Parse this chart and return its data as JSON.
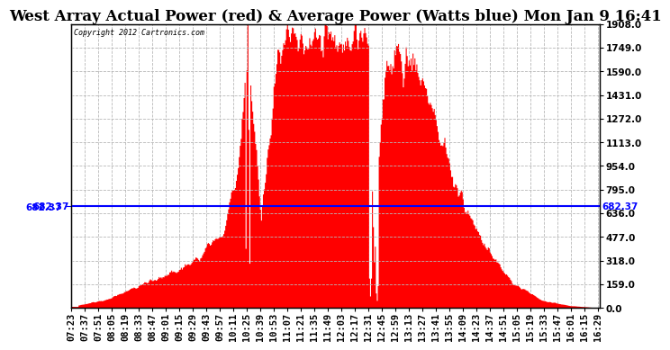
{
  "title": "West Array Actual Power (red) & Average Power (Watts blue) Mon Jan 9 16:41",
  "copyright": "Copyright 2012 Cartronics.com",
  "avg_power": 682.37,
  "y_ticks": [
    0.0,
    159.0,
    318.0,
    477.0,
    636.0,
    795.0,
    954.0,
    1113.0,
    1272.0,
    1431.0,
    1590.0,
    1749.0,
    1908.0
  ],
  "y_max": 1908.0,
  "x_tick_labels": [
    "07:23",
    "07:37",
    "07:51",
    "08:05",
    "08:19",
    "08:33",
    "08:47",
    "09:01",
    "09:15",
    "09:29",
    "09:43",
    "09:57",
    "10:11",
    "10:25",
    "10:39",
    "10:53",
    "11:07",
    "11:21",
    "11:35",
    "11:49",
    "12:03",
    "12:17",
    "12:31",
    "12:45",
    "12:59",
    "13:13",
    "13:27",
    "13:41",
    "13:55",
    "14:09",
    "14:23",
    "14:37",
    "14:51",
    "15:05",
    "15:19",
    "15:33",
    "15:47",
    "16:01",
    "16:15",
    "16:29"
  ],
  "bg_color": "#ffffff",
  "grid_color": "#b8b8b8",
  "fill_color": "#ff0000",
  "line_color": "#0000ff",
  "title_font_size": 12,
  "axis_font_size": 7.5
}
